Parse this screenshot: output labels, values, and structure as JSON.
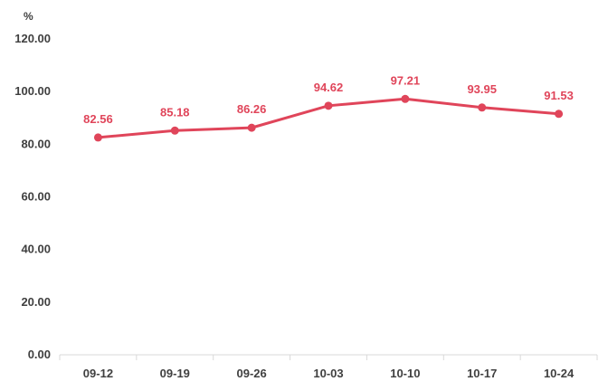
{
  "chart_data": {
    "type": "line",
    "title": "",
    "xlabel": "",
    "ylabel": "%",
    "categories": [
      "09-12",
      "09-19",
      "09-26",
      "10-03",
      "10-10",
      "10-17",
      "10-24"
    ],
    "series": [
      {
        "values": [
          82.56,
          85.18,
          86.26,
          94.62,
          97.21,
          93.95,
          91.53
        ]
      }
    ],
    "data_labels": [
      "82.56",
      "85.18",
      "86.26",
      "94.62",
      "97.21",
      "93.95",
      "91.53"
    ],
    "y_ticks": [
      "0.00",
      "20.00",
      "40.00",
      "60.00",
      "80.00",
      "100.00",
      "120.00"
    ],
    "ylim": [
      0,
      120
    ],
    "grid": false,
    "legend": "none",
    "colors": {
      "line": "#e0455a",
      "label": "#e0455a",
      "axis": "#d9d9d9",
      "text": "#404040"
    }
  }
}
